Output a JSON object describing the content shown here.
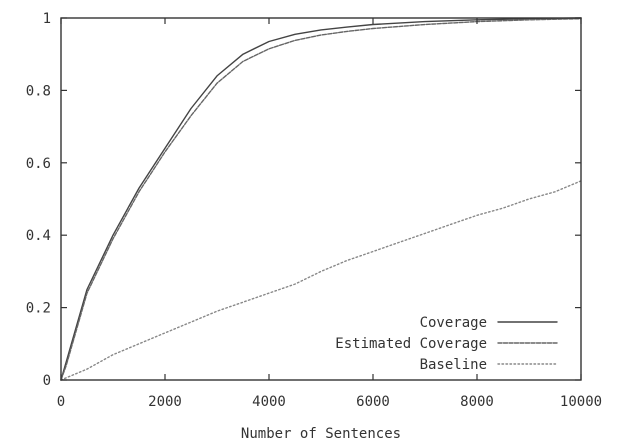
{
  "chart_data": {
    "type": "line",
    "title": "",
    "xlabel": "Number of Sentences",
    "ylabel": "",
    "xlim": [
      0,
      10000
    ],
    "ylim": [
      0,
      1
    ],
    "grid": false,
    "legend_position": "bottom-right",
    "x_ticks": [
      {
        "value": 0,
        "label": "0"
      },
      {
        "value": 2000,
        "label": "2000"
      },
      {
        "value": 4000,
        "label": "4000"
      },
      {
        "value": 6000,
        "label": "6000"
      },
      {
        "value": 8000,
        "label": "8000"
      },
      {
        "value": 10000,
        "label": "10000"
      }
    ],
    "y_ticks": [
      {
        "value": 0,
        "label": "0"
      },
      {
        "value": 0.2,
        "label": "0.2"
      },
      {
        "value": 0.4,
        "label": "0.4"
      },
      {
        "value": 0.6,
        "label": "0.6"
      },
      {
        "value": 0.8,
        "label": "0.8"
      },
      {
        "value": 1,
        "label": "1"
      }
    ],
    "series": [
      {
        "name": "Coverage",
        "color": "#444444",
        "dash": "solid",
        "x": [
          0,
          100,
          300,
          500,
          1000,
          1500,
          2000,
          2500,
          3000,
          3500,
          4000,
          4500,
          5000,
          5500,
          6000,
          7000,
          8000,
          9000,
          10000
        ],
        "y": [
          0,
          0.05,
          0.15,
          0.25,
          0.4,
          0.53,
          0.64,
          0.75,
          0.84,
          0.9,
          0.935,
          0.955,
          0.967,
          0.975,
          0.982,
          0.99,
          0.995,
          0.998,
          1.0
        ]
      },
      {
        "name": "Estimated Coverage",
        "color": "#666666",
        "dash": "fine",
        "x": [
          0,
          100,
          300,
          500,
          1000,
          1500,
          2000,
          2500,
          3000,
          3500,
          4000,
          4500,
          5000,
          5500,
          6000,
          7000,
          8000,
          9000,
          10000
        ],
        "y": [
          0,
          0.04,
          0.14,
          0.24,
          0.39,
          0.52,
          0.63,
          0.73,
          0.82,
          0.88,
          0.915,
          0.938,
          0.953,
          0.963,
          0.971,
          0.982,
          0.99,
          0.995,
          0.998
        ]
      },
      {
        "name": "Baseline",
        "color": "#888888",
        "dash": "dotted",
        "x": [
          0,
          500,
          1000,
          1500,
          2000,
          2500,
          3000,
          3500,
          4000,
          4500,
          5000,
          5500,
          6000,
          6500,
          7000,
          7500,
          8000,
          8500,
          9000,
          9500,
          10000
        ],
        "y": [
          0,
          0.03,
          0.07,
          0.1,
          0.13,
          0.16,
          0.19,
          0.215,
          0.24,
          0.265,
          0.3,
          0.33,
          0.355,
          0.38,
          0.405,
          0.43,
          0.455,
          0.475,
          0.5,
          0.52,
          0.55
        ]
      }
    ]
  }
}
